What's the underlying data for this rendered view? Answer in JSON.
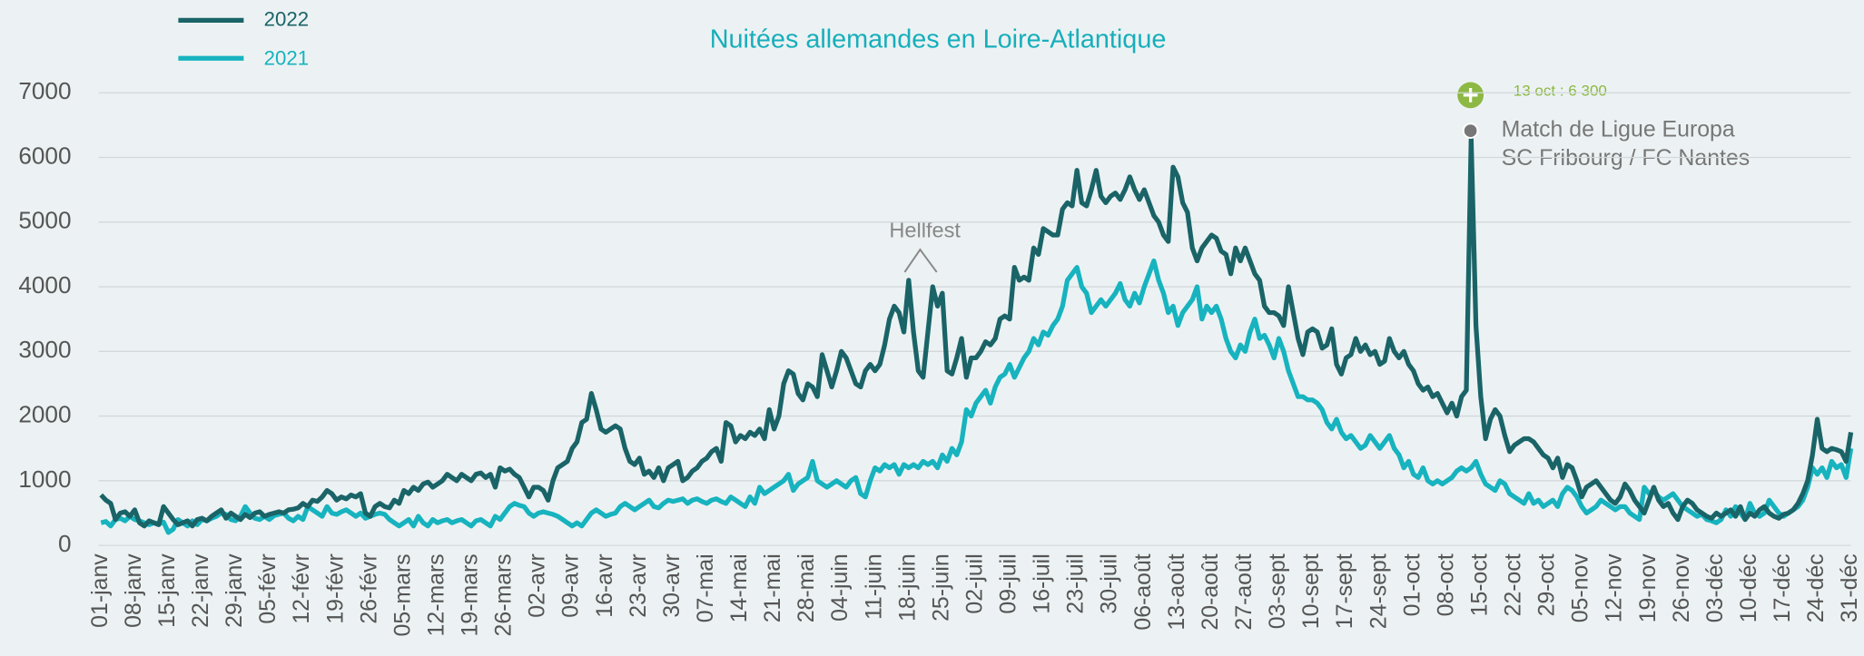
{
  "chart_data": {
    "type": "line",
    "title": "Nuitées allemandes en Loire-Atlantique",
    "categories": [
      "01-janv",
      null,
      null,
      null,
      null,
      null,
      null,
      "08-janv",
      null,
      null,
      null,
      null,
      null,
      null,
      "15-janv",
      null,
      null,
      null,
      null,
      null,
      null,
      "22-janv",
      null,
      null,
      null,
      null,
      null,
      null,
      "29-janv",
      null,
      null,
      null,
      null,
      null,
      null,
      "05-févr",
      null,
      null,
      null,
      null,
      null,
      null,
      "12-févr",
      null,
      null,
      null,
      null,
      null,
      null,
      "19-févr",
      null,
      null,
      null,
      null,
      null,
      null,
      "26-févr",
      null,
      null,
      null,
      null,
      null,
      null,
      "05-mars",
      null,
      null,
      null,
      null,
      null,
      null,
      "12-mars",
      null,
      null,
      null,
      null,
      null,
      null,
      "19-mars",
      null,
      null,
      null,
      null,
      null,
      null,
      "26-mars",
      null,
      null,
      null,
      null,
      null,
      null,
      "02-avr",
      null,
      null,
      null,
      null,
      null,
      null,
      "09-avr",
      null,
      null,
      null,
      null,
      null,
      null,
      "16-avr",
      null,
      null,
      null,
      null,
      null,
      null,
      "23-avr",
      null,
      null,
      null,
      null,
      null,
      null,
      "30-avr",
      null,
      null,
      null,
      null,
      null,
      null,
      "07-mai",
      null,
      null,
      null,
      null,
      null,
      null,
      "14-mai",
      null,
      null,
      null,
      null,
      null,
      null,
      "21-mai",
      null,
      null,
      null,
      null,
      null,
      null,
      "28-mai",
      null,
      null,
      null,
      null,
      null,
      null,
      "04-juin",
      null,
      null,
      null,
      null,
      null,
      null,
      "11-juin",
      null,
      null,
      null,
      null,
      null,
      null,
      "18-juin",
      null,
      null,
      null,
      null,
      null,
      null,
      "25-juin",
      null,
      null,
      null,
      null,
      null,
      null,
      "02-juil",
      null,
      null,
      null,
      null,
      null,
      null,
      "09-juil",
      null,
      null,
      null,
      null,
      null,
      null,
      "16-juil",
      null,
      null,
      null,
      null,
      null,
      null,
      "23-juil",
      null,
      null,
      null,
      null,
      null,
      null,
      "30-juil",
      null,
      null,
      null,
      null,
      null,
      null,
      "06-août",
      null,
      null,
      null,
      null,
      null,
      null,
      "13-août",
      null,
      null,
      null,
      null,
      null,
      null,
      "20-août",
      null,
      null,
      null,
      null,
      null,
      null,
      "27-août",
      null,
      null,
      null,
      null,
      null,
      null,
      "03-sept",
      null,
      null,
      null,
      null,
      null,
      null,
      "10-sept",
      null,
      null,
      null,
      null,
      null,
      null,
      "17-sept",
      null,
      null,
      null,
      null,
      null,
      null,
      "24-sept",
      null,
      null,
      null,
      null,
      null,
      null,
      "01-oct",
      null,
      null,
      null,
      null,
      null,
      null,
      "08-oct",
      null,
      null,
      null,
      null,
      null,
      null,
      "15-oct",
      null,
      null,
      null,
      null,
      null,
      null,
      "22-oct",
      null,
      null,
      null,
      null,
      null,
      null,
      "29-oct",
      null,
      null,
      null,
      null,
      null,
      null,
      "05-nov",
      null,
      null,
      null,
      null,
      null,
      null,
      "12-nov",
      null,
      null,
      null,
      null,
      null,
      null,
      "19-nov",
      null,
      null,
      null,
      null,
      null,
      null,
      "26-nov",
      null,
      null,
      null,
      null,
      null,
      null,
      "03-déc",
      null,
      null,
      null,
      null,
      null,
      null,
      "10-déc",
      null,
      null,
      null,
      null,
      null,
      null,
      "17-déc",
      null,
      null,
      null,
      null,
      null,
      null,
      "24-déc",
      null,
      null,
      null,
      null,
      null,
      null,
      "31-déc"
    ],
    "series": [
      {
        "name": "2022",
        "color": "#1a6468",
        "values": [
          780,
          700,
          650,
          400,
          500,
          520,
          450,
          550,
          350,
          300,
          380,
          350,
          320,
          600,
          500,
          400,
          320,
          350,
          380,
          300,
          400,
          420,
          380,
          450,
          500,
          550,
          420,
          500,
          450,
          400,
          480,
          430,
          500,
          520,
          450,
          480,
          500,
          520,
          500,
          550,
          560,
          580,
          650,
          600,
          700,
          680,
          750,
          850,
          800,
          700,
          750,
          720,
          780,
          750,
          800,
          500,
          450,
          600,
          650,
          600,
          580,
          700,
          650,
          850,
          800,
          900,
          850,
          950,
          980,
          900,
          950,
          1000,
          1100,
          1050,
          1000,
          1100,
          1050,
          1000,
          1100,
          1120,
          1050,
          1100,
          900,
          1200,
          1150,
          1180,
          1100,
          1050,
          900,
          750,
          900,
          900,
          850,
          700,
          1000,
          1200,
          1250,
          1300,
          1500,
          1600,
          1900,
          1950,
          2350,
          2100,
          1800,
          1750,
          1800,
          1850,
          1800,
          1500,
          1300,
          1250,
          1350,
          1100,
          1150,
          1050,
          1200,
          1000,
          1200,
          1250,
          1300,
          1000,
          1050,
          1150,
          1200,
          1300,
          1350,
          1450,
          1500,
          1300,
          1900,
          1850,
          1600,
          1700,
          1650,
          1750,
          1700,
          1800,
          1650,
          2100,
          1800,
          2000,
          2500,
          2700,
          2650,
          2350,
          2250,
          2500,
          2450,
          2300,
          2950,
          2700,
          2450,
          2700,
          3000,
          2900,
          2700,
          2500,
          2450,
          2700,
          2800,
          2700,
          2800,
          3100,
          3500,
          3700,
          3600,
          3300,
          4100,
          3300,
          2700,
          2600,
          3300,
          4000,
          3700,
          3900,
          2700,
          2650,
          2900,
          3200,
          2600,
          2900,
          2900,
          3000,
          3150,
          3100,
          3200,
          3500,
          3550,
          3500,
          4300,
          4100,
          4150,
          4100,
          4600,
          4500,
          4900,
          4850,
          4800,
          4800,
          5200,
          5300,
          5250,
          5800,
          5300,
          5250,
          5500,
          5800,
          5400,
          5300,
          5400,
          5450,
          5350,
          5500,
          5700,
          5500,
          5350,
          5500,
          5300,
          5100,
          5000,
          4800,
          4700,
          5850,
          5700,
          5300,
          5150,
          4600,
          4400,
          4600,
          4700,
          4800,
          4750,
          4550,
          4500,
          4200,
          4600,
          4400,
          4600,
          4400,
          4200,
          4100,
          3700,
          3600,
          3600,
          3550,
          3400,
          4000,
          3600,
          3200,
          2950,
          3300,
          3350,
          3300,
          3050,
          3100,
          3350,
          2800,
          2650,
          2900,
          2950,
          3200,
          3000,
          3100,
          2950,
          3000,
          2800,
          2850,
          3200,
          3000,
          2900,
          3000,
          2800,
          2700,
          2500,
          2400,
          2450,
          2300,
          2350,
          2200,
          2050,
          2200,
          2000,
          2300,
          2400,
          6300,
          3400,
          2300,
          1650,
          1950,
          2100,
          2000,
          1700,
          1450,
          1550,
          1600,
          1650,
          1650,
          1600,
          1500,
          1400,
          1350,
          1200,
          1350,
          1050,
          1250,
          1200,
          1000,
          750,
          900,
          950,
          1000,
          900,
          800,
          700,
          650,
          750,
          950,
          850,
          700,
          600,
          500,
          700,
          900,
          700,
          600,
          650,
          500,
          400,
          600,
          700,
          650,
          550,
          500,
          450,
          420,
          500,
          450,
          500,
          550,
          450,
          600,
          400,
          500,
          450,
          550,
          600,
          500,
          450,
          420,
          480,
          500,
          550,
          650,
          800,
          1000,
          1400,
          1950,
          1500,
          1450,
          1500,
          1480,
          1450,
          1300,
          1750
        ]
      },
      {
        "name": "2021",
        "color": "#17b3bf",
        "values": [
          350,
          370,
          300,
          400,
          420,
          380,
          450,
          400,
          380,
          350,
          320,
          350,
          330,
          360,
          200,
          250,
          400,
          350,
          300,
          380,
          320,
          400,
          380,
          420,
          450,
          500,
          480,
          400,
          380,
          450,
          600,
          500,
          420,
          400,
          450,
          400,
          460,
          480,
          500,
          420,
          380,
          450,
          400,
          600,
          550,
          500,
          450,
          600,
          500,
          480,
          520,
          550,
          500,
          450,
          500,
          420,
          450,
          480,
          500,
          480,
          400,
          350,
          300,
          350,
          400,
          300,
          450,
          350,
          300,
          400,
          350,
          380,
          400,
          350,
          380,
          400,
          350,
          300,
          380,
          400,
          350,
          300,
          450,
          400,
          500,
          600,
          650,
          620,
          600,
          500,
          450,
          500,
          520,
          500,
          480,
          450,
          400,
          350,
          300,
          350,
          300,
          400,
          500,
          550,
          500,
          450,
          480,
          500,
          600,
          650,
          600,
          550,
          600,
          650,
          700,
          600,
          580,
          650,
          700,
          680,
          700,
          720,
          650,
          700,
          720,
          680,
          650,
          700,
          720,
          680,
          650,
          750,
          700,
          650,
          600,
          750,
          650,
          900,
          800,
          850,
          900,
          950,
          1000,
          1100,
          850,
          950,
          1000,
          1050,
          1300,
          1000,
          950,
          900,
          950,
          1000,
          950,
          900,
          1000,
          1050,
          800,
          750,
          1000,
          1200,
          1150,
          1250,
          1200,
          1250,
          1100,
          1250,
          1200,
          1250,
          1200,
          1300,
          1250,
          1300,
          1200,
          1400,
          1300,
          1500,
          1400,
          1600,
          2100,
          2000,
          2200,
          2300,
          2400,
          2200,
          2450,
          2600,
          2650,
          2800,
          2600,
          2750,
          2900,
          3000,
          3200,
          3100,
          3300,
          3250,
          3400,
          3500,
          3700,
          4100,
          4200,
          4300,
          4000,
          3900,
          3600,
          3700,
          3800,
          3700,
          3800,
          3900,
          4050,
          3800,
          3700,
          3900,
          3750,
          4000,
          4200,
          4400,
          4100,
          3900,
          3600,
          3700,
          3400,
          3600,
          3700,
          3800,
          4000,
          3500,
          3700,
          3600,
          3700,
          3500,
          3200,
          3000,
          2900,
          3100,
          3000,
          3300,
          3500,
          3200,
          3250,
          3100,
          2900,
          3200,
          3000,
          2700,
          2500,
          2300,
          2300,
          2250,
          2250,
          2200,
          2100,
          1900,
          1800,
          1950,
          1750,
          1650,
          1700,
          1600,
          1500,
          1550,
          1700,
          1600,
          1500,
          1600,
          1700,
          1500,
          1400,
          1200,
          1300,
          1100,
          1050,
          1200,
          1000,
          950,
          1000,
          950,
          1000,
          1050,
          1150,
          1200,
          1150,
          1200,
          1300,
          1100,
          950,
          900,
          850,
          1000,
          950,
          800,
          750,
          700,
          650,
          800,
          650,
          700,
          600,
          650,
          700,
          600,
          800,
          900,
          850,
          750,
          600,
          500,
          550,
          600,
          700,
          650,
          600,
          550,
          600,
          600,
          500,
          450,
          400,
          900,
          800,
          850,
          750,
          700,
          750,
          800,
          700,
          600,
          550,
          500,
          450,
          480,
          400,
          380,
          350,
          400,
          550,
          450,
          600,
          500,
          400,
          650,
          500,
          450,
          500,
          700,
          600,
          500,
          450,
          500,
          550,
          600,
          700,
          900,
          1200,
          1100,
          1200,
          1050,
          1300,
          1200,
          1250,
          1050,
          1500
        ]
      }
    ],
    "ylim": [
      0,
      7000
    ],
    "yticks": [
      0,
      1000,
      2000,
      3000,
      4000,
      5000,
      6000,
      7000
    ],
    "grid": true,
    "annotations": [
      "Hellfest",
      "13 oct : 6 300",
      "Match de Ligue Europa",
      "SC Fribourg / FC Nantes"
    ]
  }
}
